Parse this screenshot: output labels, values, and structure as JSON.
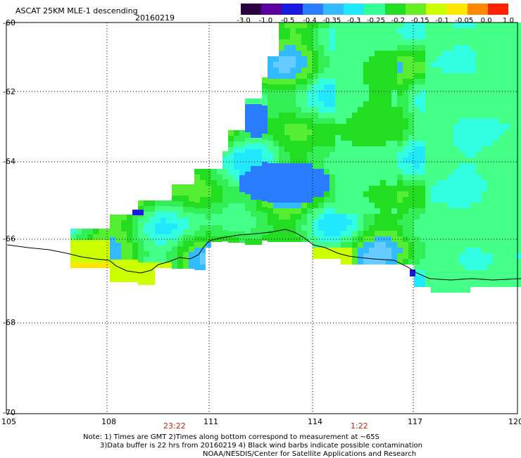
{
  "header": {
    "title": "ASCAT 25KM MLE-1 descending",
    "date": "20160219"
  },
  "colorbar": {
    "labels": [
      "-3.0",
      "-1.0",
      "-0.5",
      "-0.4",
      "-0.35",
      "-0.3",
      "-0.25",
      "-0.2",
      "-0.15",
      "-0.1",
      "-0.05",
      "0.0",
      "1.0"
    ],
    "colors": [
      "#2a0040",
      "#5a00a0",
      "#1a1ae0",
      "#2a7dff",
      "#33bbff",
      "#22e8ff",
      "#33ff99",
      "#22dd22",
      "#66ee22",
      "#ccff00",
      "#ffe600",
      "#ff8800",
      "#ff2200"
    ]
  },
  "axes": {
    "lat_labels": [
      "-60",
      "-62",
      "-64",
      "-66",
      "-68",
      "-70"
    ],
    "lon_labels": [
      "105",
      "108",
      "111",
      "114",
      "117",
      "120"
    ]
  },
  "times": [
    "23:22",
    "1:22"
  ],
  "notes": [
    "Note: 1) Times are GMT 2)Times along bottom correspond to measurement at ~65S",
    "3)Data buffer is 22 hrs from 20160219 4) Black wind barbs indicate possible contamination",
    "NOAA/NESDIS/Center for Satellite Applications and Research"
  ],
  "legend_colors": {
    "land_line": "#000000",
    "grid": "#000000",
    "time_label": "#cc2200"
  }
}
